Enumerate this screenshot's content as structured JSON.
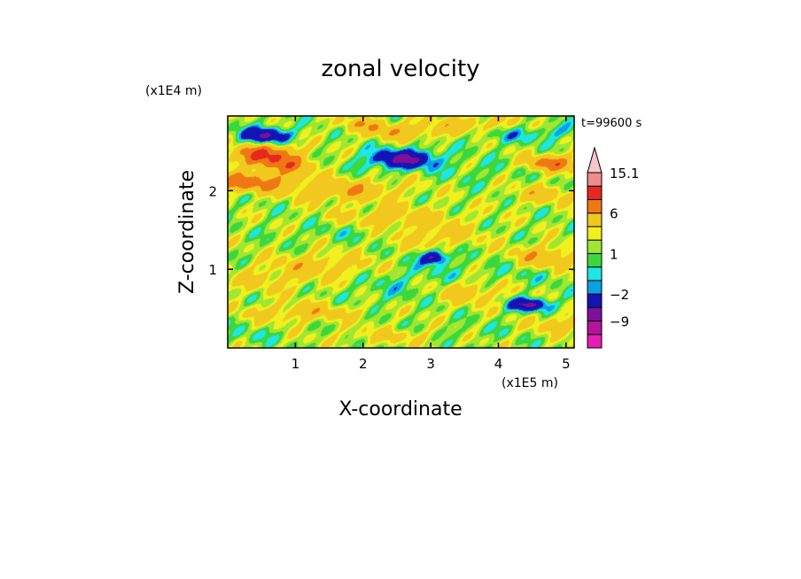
{
  "chart_data": {
    "type": "heatmap",
    "title": "zonal velocity",
    "xlabel": "X-coordinate",
    "ylabel": "Z-coordinate",
    "x_unit": "(x1E5 m)",
    "y_unit": "(x1E4 m)",
    "time_label": "t=99600 s",
    "xlim": [
      0,
      5.12
    ],
    "ylim": [
      0,
      2.95
    ],
    "x_ticks": [
      1,
      2,
      3,
      4,
      5
    ],
    "y_ticks": [
      1,
      2
    ],
    "x_tick_labels": [
      "1",
      "2",
      "3",
      "4",
      "5"
    ],
    "y_tick_labels": [
      "1",
      "2"
    ],
    "colorbar": {
      "levels": [
        -15,
        -12,
        -9,
        -6,
        -2,
        -1,
        0,
        1,
        2,
        3,
        6,
        9,
        12,
        15.1
      ],
      "colors": [
        "#e61eb4",
        "#b4149b",
        "#7d0f9b",
        "#1414b4",
        "#0aa0e6",
        "#1ee6e6",
        "#3cd73c",
        "#a0e632",
        "#f0f01e",
        "#f0c81e",
        "#f07814",
        "#e6281e",
        "#f08c8c",
        "#f5c8c8",
        "#ffffff"
      ],
      "tick_values": [
        15.1,
        6,
        1,
        -2,
        -9
      ],
      "tick_labels": [
        "15.1",
        "6",
        "1",
        "−2",
        "−9"
      ],
      "extend": "max"
    },
    "features": [
      {
        "x": 0.25,
        "z": 2.1,
        "sx": 0.8,
        "sz": 0.12,
        "v": 6
      },
      {
        "x": 0.55,
        "z": 2.45,
        "sx": 0.5,
        "sz": 0.14,
        "v": 8
      },
      {
        "x": 0.9,
        "z": 2.3,
        "sx": 0.4,
        "sz": 0.1,
        "v": 4
      },
      {
        "x": 0.55,
        "z": 2.7,
        "sx": 0.35,
        "sz": 0.1,
        "v": -8
      },
      {
        "x": 1.8,
        "z": 2.0,
        "sx": 0.8,
        "sz": 0.14,
        "v": 4
      },
      {
        "x": 2.5,
        "z": 1.65,
        "sx": 0.9,
        "sz": 0.14,
        "v": 3
      },
      {
        "x": 2.6,
        "z": 2.4,
        "sx": 0.5,
        "sz": 0.12,
        "v": -8
      },
      {
        "x": 2.6,
        "z": 2.75,
        "sx": 0.6,
        "sz": 0.1,
        "v": 4
      },
      {
        "x": 2.0,
        "z": 2.85,
        "sx": 0.4,
        "sz": 0.08,
        "v": 3
      },
      {
        "x": 3.6,
        "z": 2.85,
        "sx": 0.6,
        "sz": 0.1,
        "v": 3
      },
      {
        "x": 4.8,
        "z": 2.35,
        "sx": 0.4,
        "sz": 0.1,
        "v": 6
      },
      {
        "x": 4.7,
        "z": 1.95,
        "sx": 0.5,
        "sz": 0.12,
        "v": 3
      },
      {
        "x": 3.7,
        "z": 2.25,
        "sx": 0.5,
        "sz": 0.12,
        "v": -1
      },
      {
        "x": 4.2,
        "z": 2.7,
        "sx": 0.5,
        "sz": 0.1,
        "v": -2
      },
      {
        "x": 4.85,
        "z": 2.75,
        "sx": 0.3,
        "sz": 0.08,
        "v": -2
      },
      {
        "x": 3.1,
        "z": 1.4,
        "sx": 0.6,
        "sz": 0.15,
        "v": 3
      },
      {
        "x": 1.4,
        "z": 1.05,
        "sx": 0.8,
        "sz": 0.15,
        "v": 3
      },
      {
        "x": 0.6,
        "z": 0.85,
        "sx": 0.7,
        "sz": 0.15,
        "v": 2
      },
      {
        "x": 1.1,
        "z": 0.45,
        "sx": 0.9,
        "sz": 0.12,
        "v": 3
      },
      {
        "x": 2.3,
        "z": 0.7,
        "sx": 0.5,
        "sz": 0.2,
        "v": -1
      },
      {
        "x": 2.8,
        "z": 0.95,
        "sx": 0.6,
        "sz": 0.2,
        "v": -1
      },
      {
        "x": 3.05,
        "z": 1.15,
        "sx": 0.18,
        "sz": 0.08,
        "v": -8
      },
      {
        "x": 3.3,
        "z": 1.3,
        "sx": 0.25,
        "sz": 0.12,
        "v": -1
      },
      {
        "x": 3.6,
        "z": 0.7,
        "sx": 0.5,
        "sz": 0.15,
        "v": 3
      },
      {
        "x": 4.2,
        "z": 0.95,
        "sx": 0.8,
        "sz": 0.15,
        "v": -1
      },
      {
        "x": 4.45,
        "z": 0.55,
        "sx": 0.3,
        "sz": 0.08,
        "v": -8
      },
      {
        "x": 4.7,
        "z": 1.15,
        "sx": 0.5,
        "sz": 0.15,
        "v": 4
      },
      {
        "x": 4.9,
        "z": 0.3,
        "sx": 0.4,
        "sz": 0.12,
        "v": 3
      },
      {
        "x": 2.4,
        "z": 0.15,
        "sx": 0.8,
        "sz": 0.1,
        "v": 2
      },
      {
        "x": 0.3,
        "z": 0.15,
        "sx": 0.4,
        "sz": 0.1,
        "v": -1
      },
      {
        "x": 3.5,
        "z": 0.2,
        "sx": 0.5,
        "sz": 0.08,
        "v": -1
      },
      {
        "x": 1.8,
        "z": 1.5,
        "sx": 0.7,
        "sz": 0.12,
        "v": -1
      }
    ]
  }
}
